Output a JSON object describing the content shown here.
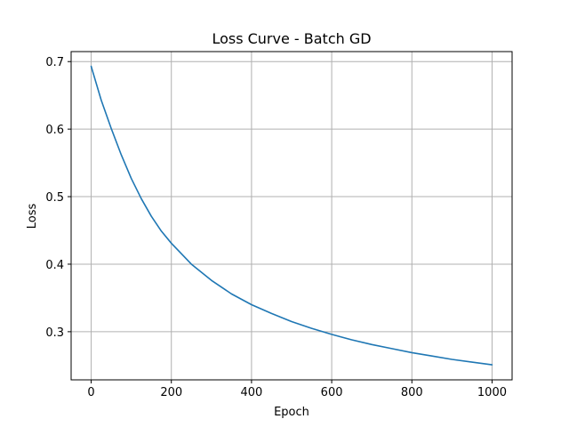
{
  "chart_data": {
    "type": "line",
    "title": "Loss Curve - Batch GD",
    "xlabel": "Epoch",
    "ylabel": "Loss",
    "xlim": [
      -50,
      1050
    ],
    "ylim": [
      0.2287,
      0.7148
    ],
    "x_ticks": [
      0,
      200,
      400,
      600,
      800,
      1000
    ],
    "y_ticks": [
      0.3,
      0.4,
      0.5,
      0.6,
      0.7
    ],
    "x_tick_labels": [
      "0",
      "200",
      "400",
      "600",
      "800",
      "1000"
    ],
    "y_tick_labels": [
      "0.3",
      "0.4",
      "0.5",
      "0.6",
      "0.7"
    ],
    "grid": true,
    "line_color": "#1f77b4",
    "grid_color": "#b0b0b0",
    "series": [
      {
        "x": [
          0,
          25,
          50,
          75,
          100,
          125,
          150,
          175,
          200,
          250,
          300,
          350,
          400,
          450,
          500,
          550,
          600,
          650,
          700,
          750,
          800,
          850,
          900,
          950,
          1000
        ],
        "values": [
          0.693,
          0.643,
          0.601,
          0.562,
          0.527,
          0.497,
          0.471,
          0.449,
          0.431,
          0.4,
          0.376,
          0.356,
          0.34,
          0.327,
          0.315,
          0.305,
          0.296,
          0.288,
          0.281,
          0.275,
          0.269,
          0.264,
          0.259,
          0.255,
          0.251
        ]
      }
    ]
  }
}
